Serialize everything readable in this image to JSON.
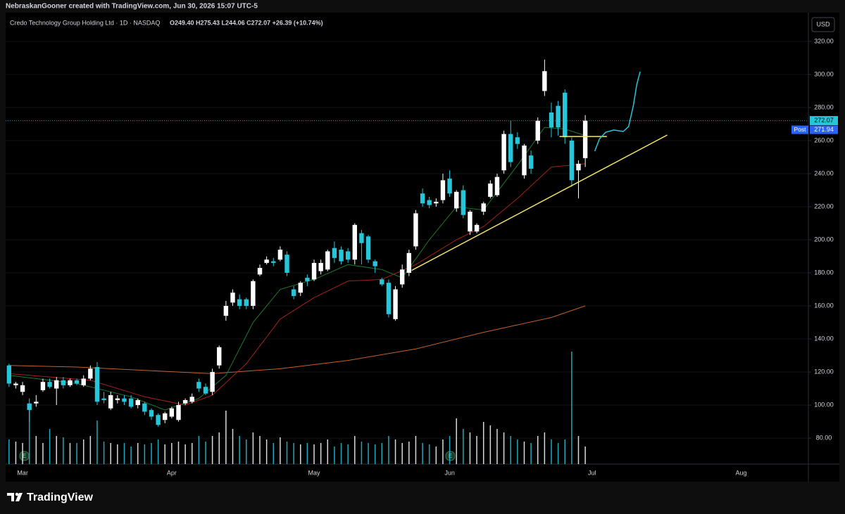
{
  "header": {
    "credit": "NebraskanGooner created with TradingView.com, Jun 30, 2026 15:07 UTC-5",
    "symbol": "Credo Technology Group Holding Ltd · 1D · NASDAQ",
    "ohlc_text": "O249.40 H275.43 L244.06 C272.07 +26.39 (+10.74%)",
    "currency": "USD"
  },
  "price_labels": {
    "last": "272.07",
    "post_tag": "Post",
    "post": "271.94"
  },
  "events": [
    "E",
    "E"
  ],
  "footer": {
    "brand": "TradingView"
  },
  "chart_data": {
    "type": "candlestick",
    "categories": [
      null,
      null,
      "Mar",
      null,
      null,
      null,
      null,
      null,
      null,
      null,
      null,
      null,
      null,
      null,
      null,
      null,
      null,
      null,
      null,
      null,
      null,
      null,
      null,
      null,
      "Apr",
      null,
      null,
      null,
      null,
      null,
      null,
      null,
      null,
      null,
      null,
      null,
      null,
      null,
      null,
      null,
      null,
      null,
      null,
      null,
      null,
      "May",
      null,
      null,
      null,
      null,
      null,
      null,
      null,
      null,
      null,
      null,
      null,
      null,
      null,
      null,
      null,
      null,
      null,
      null,
      null,
      "Jun",
      null,
      null,
      null,
      null,
      null,
      null,
      null,
      null,
      null,
      null,
      null,
      null,
      null,
      null,
      null,
      null,
      null,
      null,
      null,
      null,
      "Jul",
      null,
      null,
      null,
      null,
      null,
      null,
      null,
      null,
      null,
      null,
      null,
      null,
      null,
      null,
      null,
      null,
      null,
      null,
      null,
      null,
      null,
      "Aug",
      null,
      null,
      null,
      null,
      null,
      null,
      null,
      null,
      null
    ],
    "open": [
      124,
      112,
      108,
      101,
      101,
      109,
      114,
      110,
      115,
      112,
      115,
      112,
      116,
      123,
      104,
      98,
      103,
      104,
      104,
      100,
      101,
      97,
      94,
      91,
      93,
      91,
      101,
      102,
      114,
      111,
      108,
      124,
      154,
      162,
      164,
      164,
      160,
      179,
      186,
      187,
      188,
      191,
      170,
      168,
      177,
      176,
      181,
      182,
      195,
      194,
      193,
      188,
      204,
      202,
      187,
      176,
      174,
      152,
      173,
      180,
      196,
      228,
      224,
      222,
      224,
      237,
      219,
      230,
      205,
      205,
      217,
      226,
      227,
      242,
      264,
      262,
      239,
      251,
      260,
      290,
      277,
      281,
      289,
      260,
      242,
      249.4,
      null,
      null,
      null,
      null,
      null,
      null,
      null,
      null,
      null,
      null,
      null,
      null,
      null,
      null,
      null,
      null,
      null,
      null,
      null,
      null,
      null,
      null,
      null,
      null,
      null,
      null,
      null,
      null,
      null,
      null,
      null,
      null
    ],
    "high": [
      125,
      114,
      114,
      104,
      106,
      116,
      116,
      117,
      117,
      116,
      116,
      118,
      124,
      126,
      108,
      108,
      106,
      106,
      106,
      104,
      102,
      98,
      95,
      96,
      99,
      102,
      104,
      107,
      116,
      113,
      122,
      136,
      163,
      170,
      167,
      165,
      176,
      185,
      190,
      189,
      196,
      193,
      172,
      175,
      179,
      188,
      188,
      194,
      199,
      196,
      195,
      210,
      206,
      203,
      188,
      177,
      176,
      172,
      185,
      194,
      218,
      231,
      226,
      225,
      240,
      242,
      230,
      233,
      218,
      210,
      223,
      236,
      240,
      266,
      272,
      265,
      258,
      254,
      274,
      309,
      283,
      284,
      291,
      262,
      248,
      275.43,
      null,
      null,
      null,
      null,
      null,
      null,
      null,
      null,
      null,
      null,
      null,
      null,
      null,
      null,
      null,
      null,
      null,
      null,
      null,
      null,
      null,
      null,
      null,
      null,
      null,
      null,
      null,
      null,
      null,
      null,
      null,
      null
    ],
    "low": [
      111,
      110,
      106,
      90,
      99,
      108,
      110,
      100,
      110,
      111,
      112,
      111,
      115,
      100,
      101,
      97,
      101,
      100,
      98,
      98,
      94,
      91,
      87,
      89,
      92,
      90,
      100,
      101,
      108,
      106,
      106,
      122,
      151,
      160,
      158,
      158,
      158,
      178,
      185,
      184,
      187,
      178,
      164,
      166,
      172,
      175,
      179,
      181,
      186,
      185,
      186,
      185,
      185,
      186,
      180,
      172,
      153,
      151,
      171,
      178,
      194,
      220,
      219,
      220,
      222,
      226,
      217,
      213,
      203,
      204,
      215,
      225,
      226,
      240,
      244,
      255,
      237,
      240,
      258,
      287,
      262,
      263,
      258,
      232,
      225,
      244.06,
      null,
      null,
      null,
      null,
      null,
      null,
      null,
      null,
      null,
      null,
      null,
      null,
      null,
      null,
      null,
      null,
      null,
      null,
      null,
      null,
      null,
      null,
      null,
      null,
      null,
      null,
      null,
      null,
      null,
      null,
      null,
      null
    ],
    "close": [
      113,
      113,
      112,
      97,
      102,
      114,
      111,
      115,
      112,
      115,
      113,
      116,
      122,
      102,
      103,
      106,
      104,
      102,
      99,
      103,
      96,
      93,
      88,
      95,
      98,
      100,
      103,
      105,
      110,
      107,
      120,
      135,
      160,
      168,
      160,
      160,
      175,
      183,
      188,
      186,
      194,
      180,
      166,
      174,
      175,
      186,
      186,
      193,
      189,
      187,
      188,
      209,
      198,
      188,
      184,
      173,
      155,
      170,
      182,
      192,
      216,
      222,
      221,
      223,
      236,
      228,
      229,
      215,
      217,
      209,
      222,
      234,
      238,
      264,
      247,
      258,
      257,
      243,
      272,
      302,
      268,
      268,
      262,
      236,
      246,
      272.07,
      null,
      null,
      null,
      null,
      null,
      null,
      null,
      null,
      null,
      null,
      null,
      null,
      null,
      null,
      null,
      null,
      null,
      null,
      null,
      null,
      null,
      null,
      null,
      null,
      null,
      null,
      null,
      null,
      null,
      null,
      null,
      null
    ],
    "volume": [
      35,
      32,
      30,
      83,
      40,
      30,
      50,
      40,
      38,
      30,
      30,
      35,
      40,
      62,
      32,
      30,
      28,
      30,
      25,
      30,
      28,
      30,
      35,
      28,
      30,
      32,
      28,
      30,
      40,
      32,
      40,
      45,
      76,
      50,
      40,
      35,
      45,
      40,
      35,
      30,
      38,
      32,
      30,
      28,
      30,
      28,
      30,
      35,
      25,
      30,
      28,
      40,
      32,
      30,
      28,
      30,
      40,
      35,
      30,
      32,
      40,
      30,
      28,
      25,
      35,
      40,
      65,
      50,
      45,
      40,
      60,
      55,
      50,
      45,
      40,
      35,
      32,
      30,
      40,
      45,
      35,
      30,
      35,
      160,
      40,
      25,
      null,
      null,
      null,
      null,
      null,
      null,
      null,
      null,
      null,
      null,
      null,
      null,
      null,
      null,
      null,
      null,
      null,
      null,
      null,
      null,
      null,
      null,
      null,
      null,
      null,
      null,
      null,
      null,
      null,
      null,
      null,
      null
    ],
    "up_color": "#ffffff",
    "down_color": "#26c6da",
    "ylim": [
      64.3,
      337.4
    ],
    "yticks": [
      {
        "value": 80,
        "label": "80.00"
      },
      {
        "value": 100,
        "label": "100.00"
      },
      {
        "value": 120,
        "label": "120.00"
      },
      {
        "value": 140,
        "label": "140.00"
      },
      {
        "value": 160,
        "label": "160.00"
      },
      {
        "value": 180,
        "label": "180.00"
      },
      {
        "value": 200,
        "label": "200.00"
      },
      {
        "value": 220,
        "label": "220.00"
      },
      {
        "value": 240,
        "label": "240.00"
      },
      {
        "value": 260,
        "label": "260.00"
      },
      {
        "value": 280,
        "label": "280.00"
      },
      {
        "value": 300,
        "label": "300.00"
      },
      {
        "value": 320,
        "label": "320.00"
      }
    ],
    "grid": true,
    "moving_averages": [
      {
        "color": "#c0622f",
        "x": [
          0,
          10,
          20,
          30,
          40,
          50,
          60,
          70,
          80,
          85
        ],
        "values": [
          124,
          123,
          121,
          119,
          122,
          127,
          134,
          144,
          153,
          160
        ]
      },
      {
        "color": "#1e7a2c",
        "x": [
          0,
          10,
          18,
          23,
          28,
          32,
          36,
          40,
          45,
          50,
          55,
          58,
          62,
          66,
          70,
          75,
          79,
          82,
          85
        ],
        "values": [
          118,
          113,
          105,
          97,
          104,
          118,
          150,
          170,
          176,
          185,
          182,
          177,
          200,
          220,
          218,
          245,
          268,
          267,
          263
        ]
      },
      {
        "color": "#a3201d",
        "x": [
          0,
          12,
          20,
          26,
          30,
          35,
          40,
          45,
          50,
          55,
          60,
          66,
          70,
          75,
          80,
          85
        ],
        "values": [
          119,
          115,
          105,
          100,
          106,
          125,
          152,
          165,
          175,
          176,
          185,
          200,
          208,
          225,
          244,
          246
        ]
      }
    ],
    "drawings": [
      {
        "color": "#f5e663",
        "x": [
          59.4,
          97.1
        ],
        "values": [
          181.5,
          263.4
        ]
      },
      {
        "color": "#f5e663",
        "x": [
          81.2,
          88.2
        ],
        "values": [
          262.5,
          262.5
        ]
      },
      {
        "color": "#26c6da",
        "x": [
          86.4,
          87.1,
          88,
          89.2,
          90.6,
          91.4,
          92.1,
          92.6,
          93.1
        ],
        "values": [
          253.6,
          261,
          265,
          266.4,
          265.5,
          268.5,
          281.3,
          294,
          301.7
        ]
      }
    ]
  }
}
